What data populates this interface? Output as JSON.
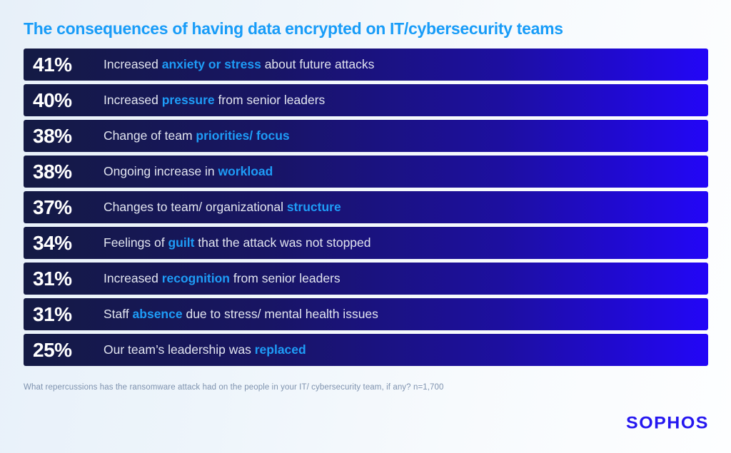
{
  "title": "The consequences of having data encrypted on IT/cybersecurity teams",
  "footnote": "What repercussions has the ransomware attack had on the people in your IT/ cybersecurity team, if any? n=1,700",
  "logo": "SOPHOS",
  "colors": {
    "title_blue": "#189cf8",
    "highlight_blue": "#1e9cf7",
    "bar_gradient_start": "#141a44",
    "bar_gradient_end": "#2306f7",
    "percent_text": "#ffffff",
    "label_text": "#e2e5f0",
    "footnote_text": "#7e92ae",
    "logo_blue": "#2517f0",
    "background_start": "#e7f0f9",
    "background_end": "#fdfeff"
  },
  "bars": [
    {
      "pct": "41%",
      "pre": "Increased ",
      "highlight": "anxiety or stress",
      "post": " about future attacks"
    },
    {
      "pct": "40%",
      "pre": "Increased ",
      "highlight": "pressure",
      "post": " from senior leaders"
    },
    {
      "pct": "38%",
      "pre": "Change of team ",
      "highlight": "priorities/ focus",
      "post": ""
    },
    {
      "pct": "38%",
      "pre": "Ongoing increase in ",
      "highlight": "workload",
      "post": ""
    },
    {
      "pct": "37%",
      "pre": "Changes to team/ organizational ",
      "highlight": "structure",
      "post": ""
    },
    {
      "pct": "34%",
      "pre": "Feelings of ",
      "highlight": "guilt",
      "post": " that the attack was not stopped"
    },
    {
      "pct": "31%",
      "pre": "Increased ",
      "highlight": "recognition",
      "post": " from senior leaders"
    },
    {
      "pct": "31%",
      "pre": "Staff ",
      "highlight": "absence",
      "post": " due to stress/ mental health issues"
    },
    {
      "pct": "25%",
      "pre": "Our team’s leadership was ",
      "highlight": "replaced",
      "post": ""
    }
  ],
  "chart_data": {
    "type": "bar",
    "orientation": "horizontal",
    "title": "The consequences of having data encrypted on IT/cybersecurity teams",
    "categories": [
      "Increased anxiety or stress about future attacks",
      "Increased pressure from senior leaders",
      "Change of team priorities/ focus",
      "Ongoing increase in workload",
      "Changes to team/ organizational structure",
      "Feelings of guilt that the attack was not stopped",
      "Increased recognition from senior leaders",
      "Staff absence due to stress/ mental health issues",
      "Our team’s leadership was replaced"
    ],
    "values": [
      41,
      40,
      38,
      38,
      37,
      34,
      31,
      31,
      25
    ],
    "unit": "%",
    "layout": "equal-width banner rows with value labels on the left, highlighted keywords in blue",
    "source_note": "What repercussions has the ransomware attack had on the people in your IT/ cybersecurity team, if any? n=1,700"
  }
}
